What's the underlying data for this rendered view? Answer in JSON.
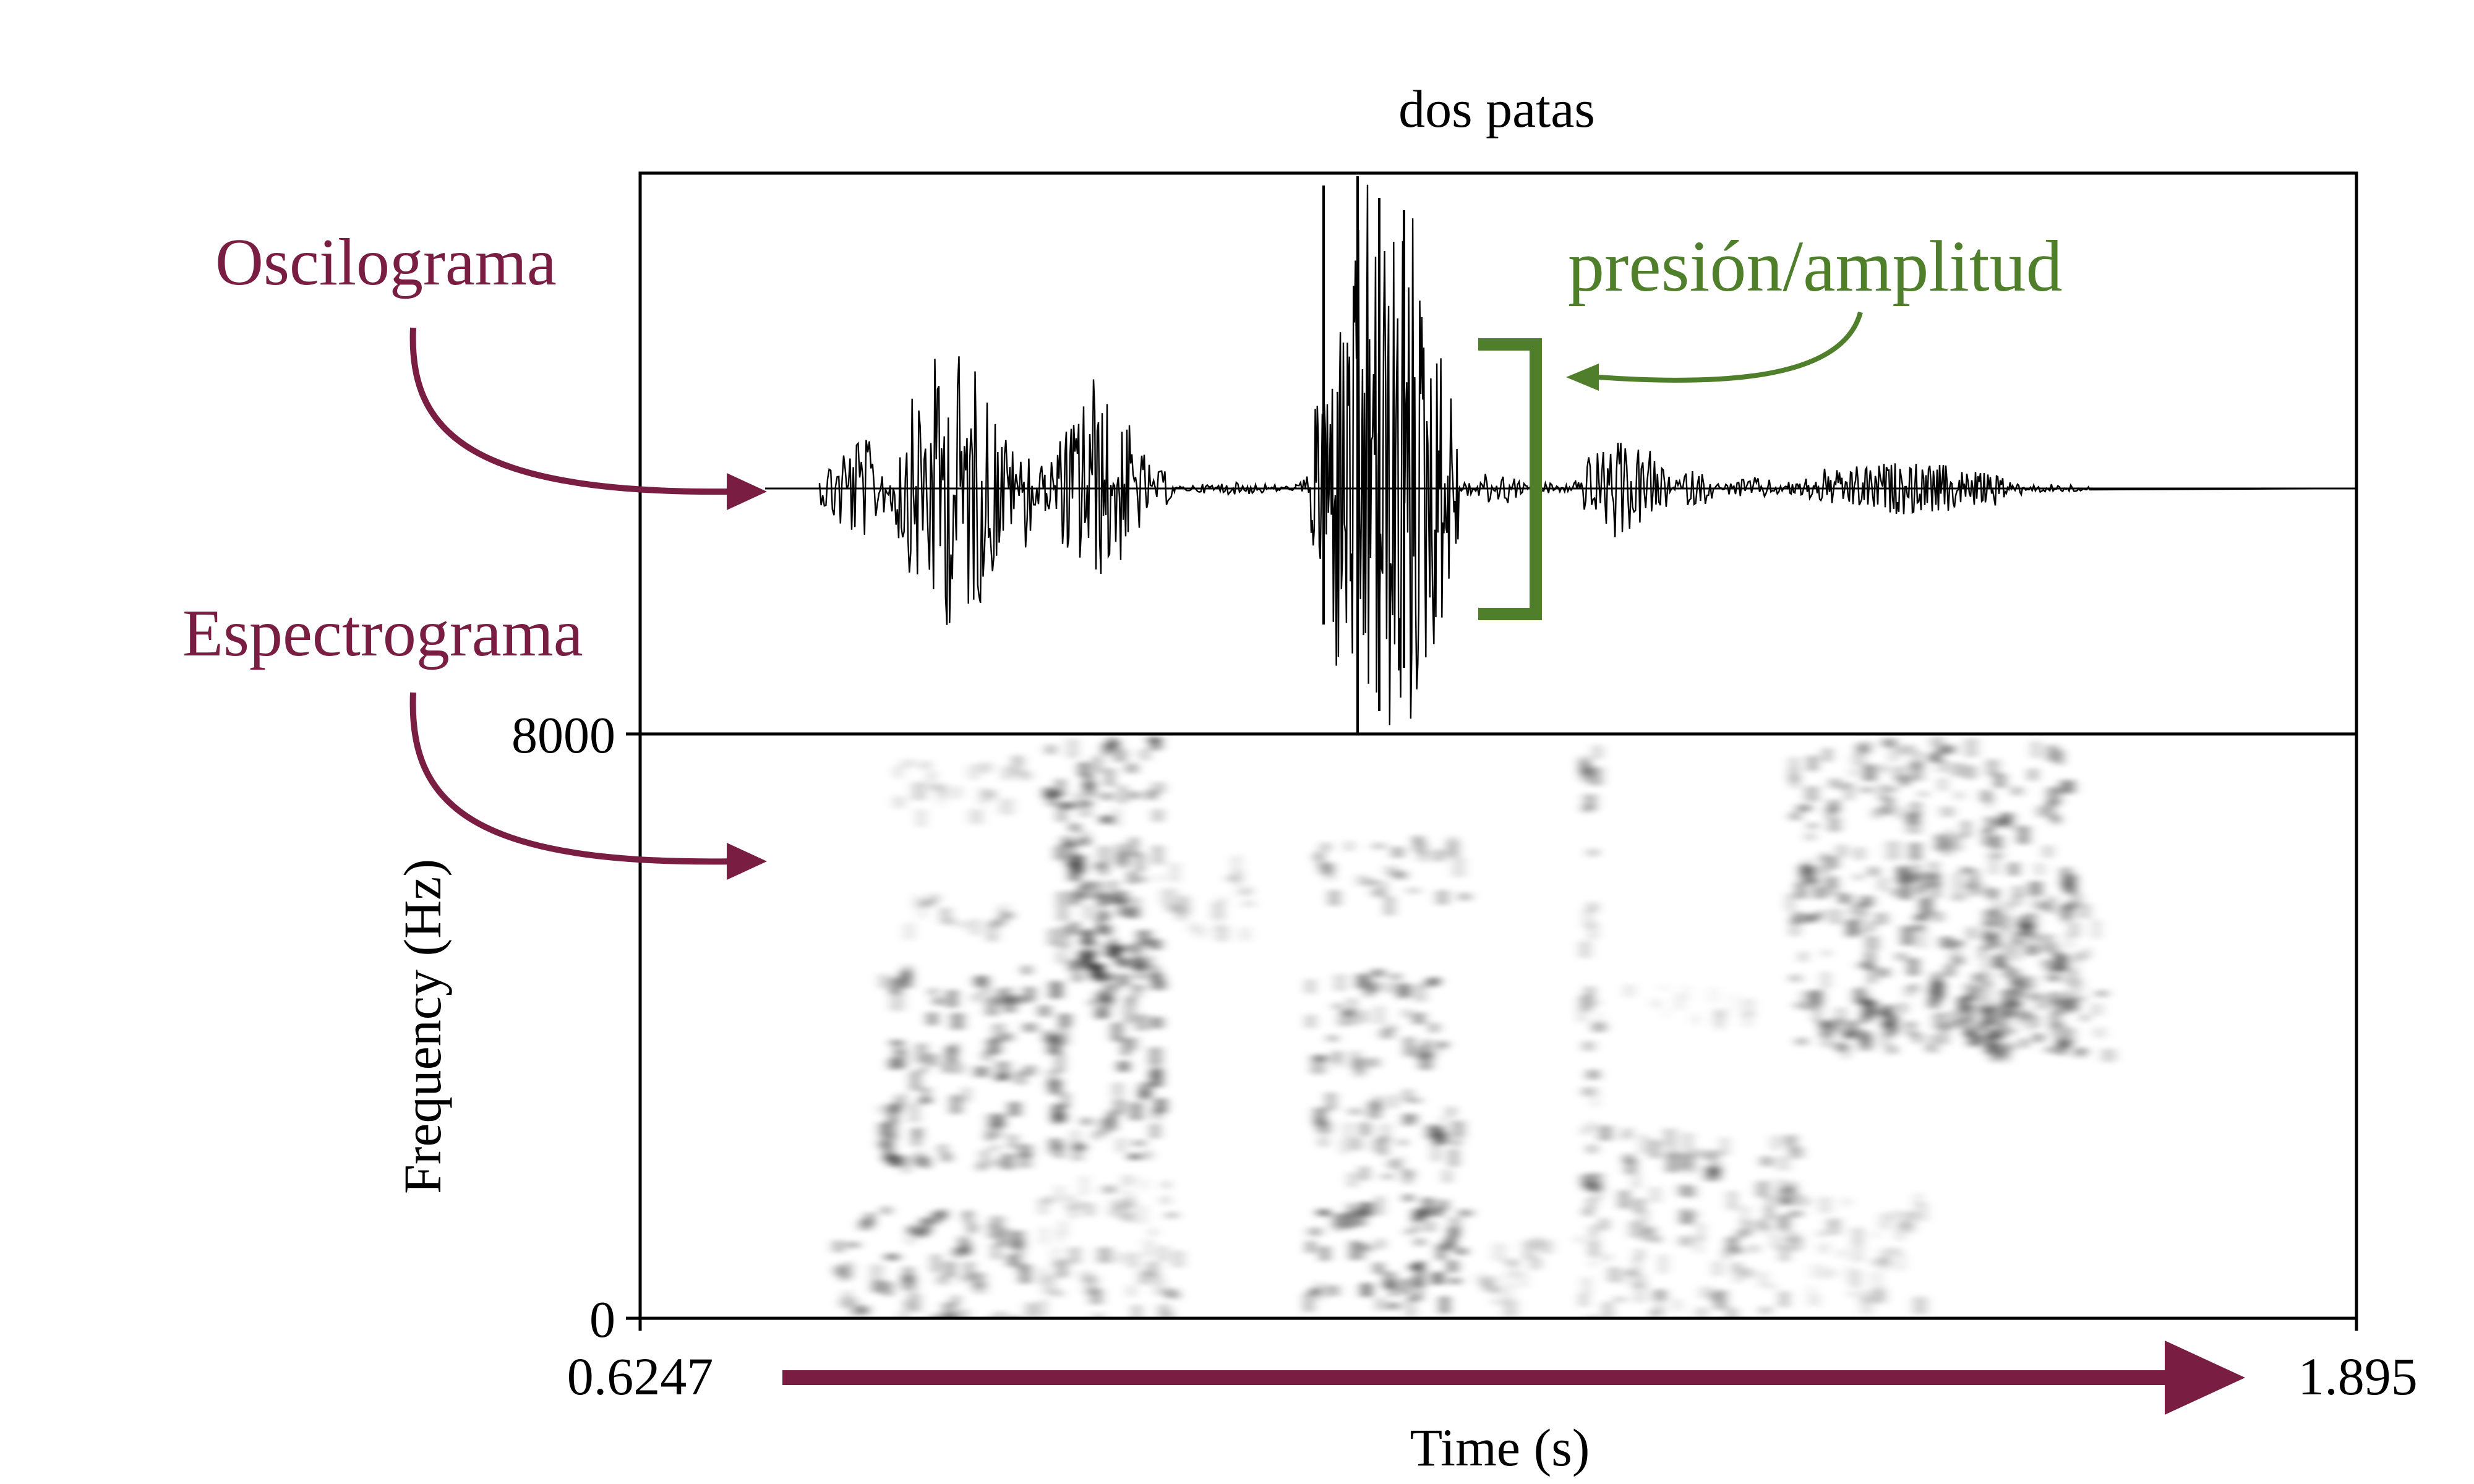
{
  "title": "dos patas",
  "annotations": {
    "oscillogram": "Oscilograma",
    "spectrogram": "Espectrograma",
    "pressure_amplitude": "presión/amplitud"
  },
  "axes": {
    "x_label": "Time (s)",
    "x_start": "0.6247",
    "x_end": "1.895",
    "y_label": "Frequency (Hz)",
    "y_top": "8000",
    "y_bottom": "0"
  },
  "colors": {
    "maroon": "#7a1d43",
    "green": "#4f7f2a",
    "ink": "#000000"
  }
}
